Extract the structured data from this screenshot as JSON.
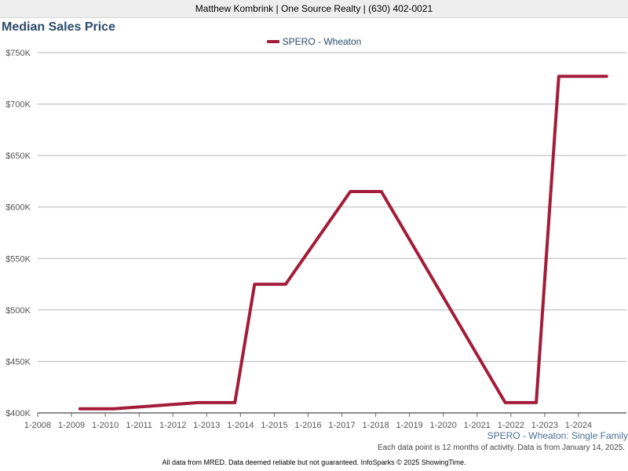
{
  "header": {
    "agent_line": "Matthew Kombrink | One Source Realty | (630) 402-0021"
  },
  "chart_data": {
    "type": "line",
    "title": "Median Sales Price",
    "subtitle": "SPERO - Wheaton: Single Family",
    "xlabel": "",
    "ylabel": "",
    "x_ticks": [
      "1-2008",
      "1-2009",
      "1-2010",
      "1-2011",
      "1-2012",
      "1-2013",
      "1-2014",
      "1-2015",
      "1-2016",
      "1-2017",
      "1-2018",
      "1-2019",
      "1-2020",
      "1-2021",
      "1-2022",
      "1-2023",
      "1-2024"
    ],
    "y_ticks": [
      "$400K",
      "$450K",
      "$500K",
      "$550K",
      "$600K",
      "$650K",
      "$700K",
      "$750K"
    ],
    "ylim": [
      400000,
      750000
    ],
    "xlim": [
      "2008-01",
      "2025-01"
    ],
    "grid": true,
    "legend_position": "top-center",
    "series": [
      {
        "name": "SPERO - Wheaton",
        "color": "#a31c3a",
        "points": [
          {
            "x": "2009-04",
            "y": 404000
          },
          {
            "x": "2010-04",
            "y": 404000
          },
          {
            "x": "2012-10",
            "y": 410000
          },
          {
            "x": "2013-11",
            "y": 410000
          },
          {
            "x": "2014-06",
            "y": 525000
          },
          {
            "x": "2015-05",
            "y": 525000
          },
          {
            "x": "2017-04",
            "y": 615000
          },
          {
            "x": "2018-03",
            "y": 615000
          },
          {
            "x": "2021-11",
            "y": 410000
          },
          {
            "x": "2022-10",
            "y": 410000
          },
          {
            "x": "2023-06",
            "y": 727000
          },
          {
            "x": "2024-11",
            "y": 727000
          }
        ]
      }
    ]
  },
  "notes": {
    "data_point_note": "Each data point is 12 months of activity. Data is from January 14, 2025.",
    "disclaimer": "All data from MRED. Data deemed reliable but not guaranteed. InfoSparks © 2025 ShowingTime."
  },
  "colors": {
    "title": "#2a4a6b",
    "grid": "#b5b5b5",
    "axis_text": "#555555"
  }
}
